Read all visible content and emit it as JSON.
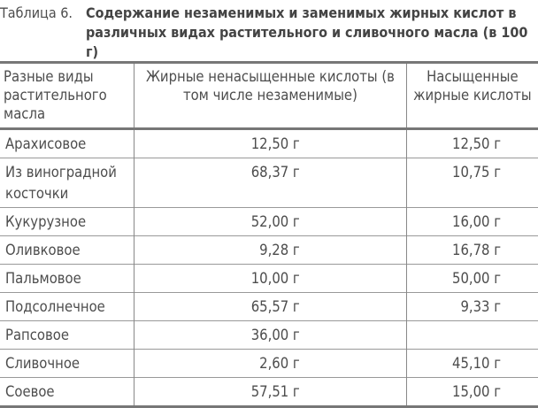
{
  "caption": {
    "label": "Таблица 6.",
    "title": "Содержание незаменимых и заменимых жирных кислот в различных видах растительного и сливочного масла (в 100 г)"
  },
  "table": {
    "headers": [
      "Разные виды растительного масла",
      "Жирные ненасыщенные кислоты (в том числе незаменимые)",
      "Насыщенные жирные кислоты"
    ],
    "rows": [
      {
        "name": "Арахисовое",
        "unsaturated": "12,50 г",
        "saturated": "12,50 г"
      },
      {
        "name": "Из виноградной косточки",
        "unsaturated": "68,37 г",
        "saturated": "10,75 г"
      },
      {
        "name": "Кукурузное",
        "unsaturated": "52,00 г",
        "saturated": "16,00 г"
      },
      {
        "name": "Оливковое",
        "unsaturated": "9,28 г",
        "saturated": "16,78 г"
      },
      {
        "name": "Пальмовое",
        "unsaturated": "10,00 г",
        "saturated": "50,00 г"
      },
      {
        "name": "Подсолнечное",
        "unsaturated": "65,57 г",
        "saturated": "9,33 г"
      },
      {
        "name": "Рапсовое",
        "unsaturated": "36,00 г",
        "saturated": ""
      },
      {
        "name": "Сливочное",
        "unsaturated": "2,60 г",
        "saturated": "45,10 г"
      },
      {
        "name": "Соевое",
        "unsaturated": "57,51 г",
        "saturated": "15,00 г"
      }
    ]
  }
}
